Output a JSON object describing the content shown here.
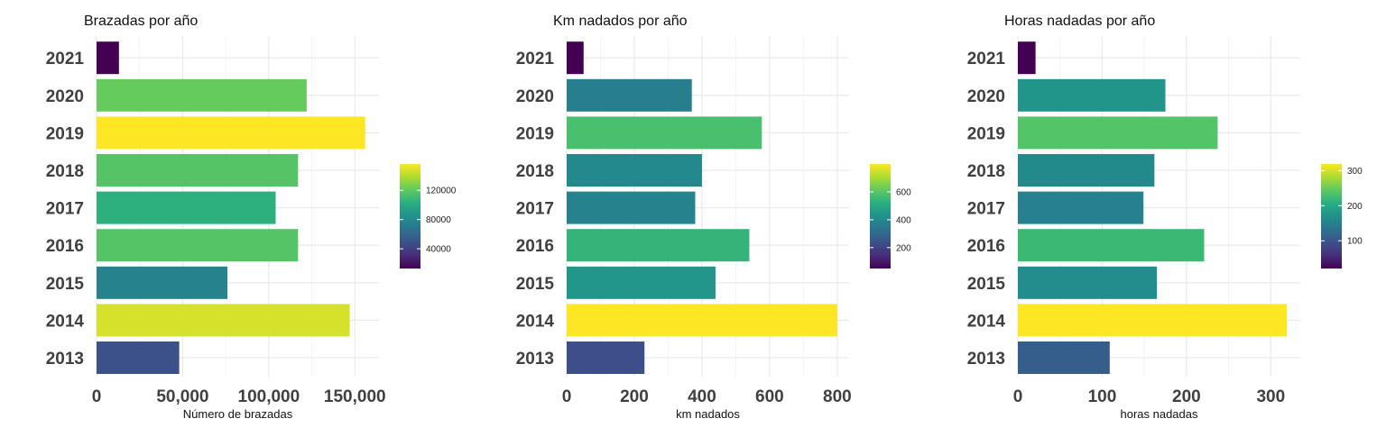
{
  "palette": [
    "#440154",
    "#472d7b",
    "#3b528b",
    "#2c728e",
    "#21918c",
    "#28ae80",
    "#5ec962",
    "#addc30",
    "#fde725"
  ],
  "chart_data": [
    {
      "type": "bar",
      "orientation": "horizontal",
      "title": "Brazadas por año",
      "xlabel": "Número de brazadas",
      "ylabel": "",
      "categories": [
        "2013",
        "2014",
        "2015",
        "2016",
        "2017",
        "2018",
        "2019",
        "2020",
        "2021"
      ],
      "values": [
        48000,
        147000,
        76000,
        117000,
        104000,
        117000,
        156000,
        122000,
        13000
      ],
      "xlim": [
        0,
        164000
      ],
      "xticks": [
        0,
        50000,
        100000,
        150000
      ],
      "xtick_labels": [
        "0",
        "50,000",
        "100,000",
        "150,000"
      ],
      "color_range": [
        13000,
        156000
      ],
      "legend_ticks": [
        40000,
        80000,
        120000
      ],
      "legend_tick_labels": [
        "40000",
        "80000",
        "120000"
      ],
      "legend_position": "right",
      "grid": true
    },
    {
      "type": "bar",
      "orientation": "horizontal",
      "title": "Km nadados por año",
      "xlabel": "km nadados",
      "ylabel": "",
      "categories": [
        "2013",
        "2014",
        "2015",
        "2016",
        "2017",
        "2018",
        "2019",
        "2020",
        "2021"
      ],
      "values": [
        230,
        800,
        440,
        540,
        380,
        400,
        577,
        370,
        50
      ],
      "xlim": [
        0,
        835
      ],
      "xticks": [
        0,
        200,
        400,
        600,
        800
      ],
      "xtick_labels": [
        "0",
        "200",
        "400",
        "600",
        "800"
      ],
      "color_range": [
        50,
        800
      ],
      "legend_ticks": [
        200,
        400,
        600
      ],
      "legend_tick_labels": [
        "200",
        "400",
        "600"
      ],
      "legend_position": "right",
      "grid": true
    },
    {
      "type": "bar",
      "orientation": "horizontal",
      "title": "Horas nadadas por año",
      "xlabel": "horas nadadas",
      "ylabel": "",
      "categories": [
        "2013",
        "2014",
        "2015",
        "2016",
        "2017",
        "2018",
        "2019",
        "2020",
        "2021"
      ],
      "values": [
        109,
        319,
        165,
        221,
        149,
        162,
        237,
        175,
        21
      ],
      "xlim": [
        0,
        335
      ],
      "xticks": [
        0,
        100,
        200,
        300
      ],
      "xtick_labels": [
        "0",
        "100",
        "200",
        "300"
      ],
      "color_range": [
        21,
        319
      ],
      "legend_ticks": [
        100,
        200,
        300
      ],
      "legend_tick_labels": [
        "100",
        "200",
        "300"
      ],
      "legend_position": "right",
      "grid": true
    }
  ]
}
